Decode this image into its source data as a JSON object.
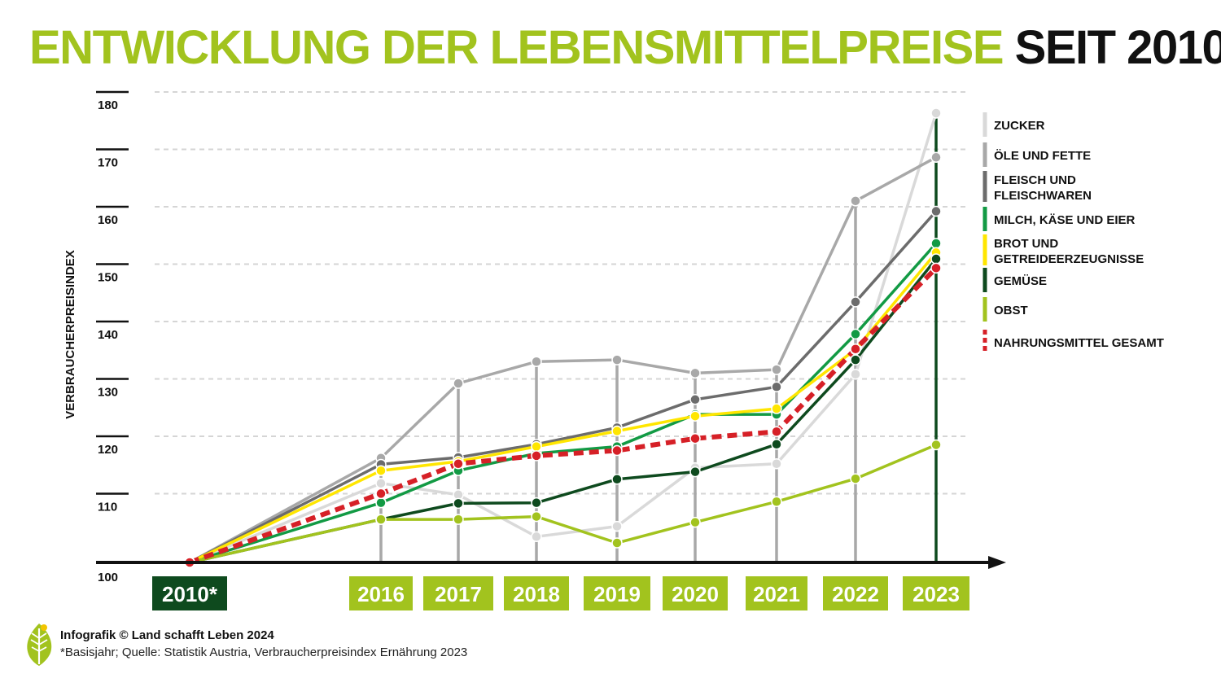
{
  "title": {
    "part1": "ENTWICKLUNG DER LEBENSMITTELPREISE",
    "part2": "SEIT 2010"
  },
  "footer": {
    "credit": "Infografik © Land schafft Leben 2024",
    "note": "*Basisjahr; Quelle: Statistik Austria, Verbraucherpreisindex Ernährung 2023"
  },
  "colors": {
    "title_green": "#a2c31e",
    "label_green": "#a2c31e",
    "base_label": "#0e4a1e"
  },
  "chart_data": {
    "type": "line",
    "ylabel": "VERBRAUCHERPREISINDEX",
    "xlabel": "",
    "ylim": [
      100,
      182
    ],
    "yticks": [
      100,
      110,
      120,
      130,
      140,
      150,
      160,
      170,
      180
    ],
    "x": [
      "2010*",
      "2016",
      "2017",
      "2018",
      "2019",
      "2020",
      "2021",
      "2022",
      "2023"
    ],
    "grid": true,
    "legend_position": "right",
    "series": [
      {
        "name": "ZUCKER",
        "color": "#d9d9d9",
        "dashed": false,
        "values": [
          100,
          113.8,
          111.8,
          104.5,
          106.3,
          116.5,
          117.2,
          132.8,
          178.3
        ]
      },
      {
        "name": "ÖLE UND FETTE",
        "color": "#a8a8a8",
        "dashed": false,
        "values": [
          100,
          118.2,
          131.2,
          135.0,
          135.3,
          133.0,
          133.6,
          163.0,
          170.6
        ]
      },
      {
        "name": "FLEISCH UND FLEISCHWAREN",
        "color": "#6c6c6c",
        "dashed": false,
        "values": [
          100,
          117.1,
          118.3,
          120.6,
          123.5,
          128.4,
          130.6,
          145.4,
          161.2
        ]
      },
      {
        "name": "MILCH, KÄSE UND EIER",
        "color": "#129a44",
        "dashed": false,
        "values": [
          100,
          110.4,
          116.0,
          119.0,
          120.2,
          125.8,
          125.8,
          139.8,
          155.6
        ]
      },
      {
        "name": "BROT UND GETREIDEERZEUGNISSE",
        "color": "#ffe600",
        "dashed": false,
        "values": [
          100,
          116.0,
          117.6,
          120.2,
          122.9,
          125.5,
          126.8,
          137.1,
          154.0
        ]
      },
      {
        "name": "GEMÜSE",
        "color": "#0e4a1e",
        "dashed": false,
        "values": [
          100,
          107.5,
          110.3,
          110.4,
          114.5,
          115.8,
          120.6,
          135.3,
          152.9
        ]
      },
      {
        "name": "OBST",
        "color": "#a2c31e",
        "dashed": false,
        "values": [
          100,
          107.5,
          107.5,
          108.0,
          103.4,
          107.0,
          110.6,
          114.6,
          120.5
        ]
      },
      {
        "name": "NAHRUNGSMITTEL GESAMT",
        "color": "#d62027",
        "dashed": true,
        "values": [
          100,
          112.0,
          117.2,
          118.6,
          119.5,
          121.6,
          122.8,
          137.2,
          151.3
        ]
      }
    ]
  }
}
